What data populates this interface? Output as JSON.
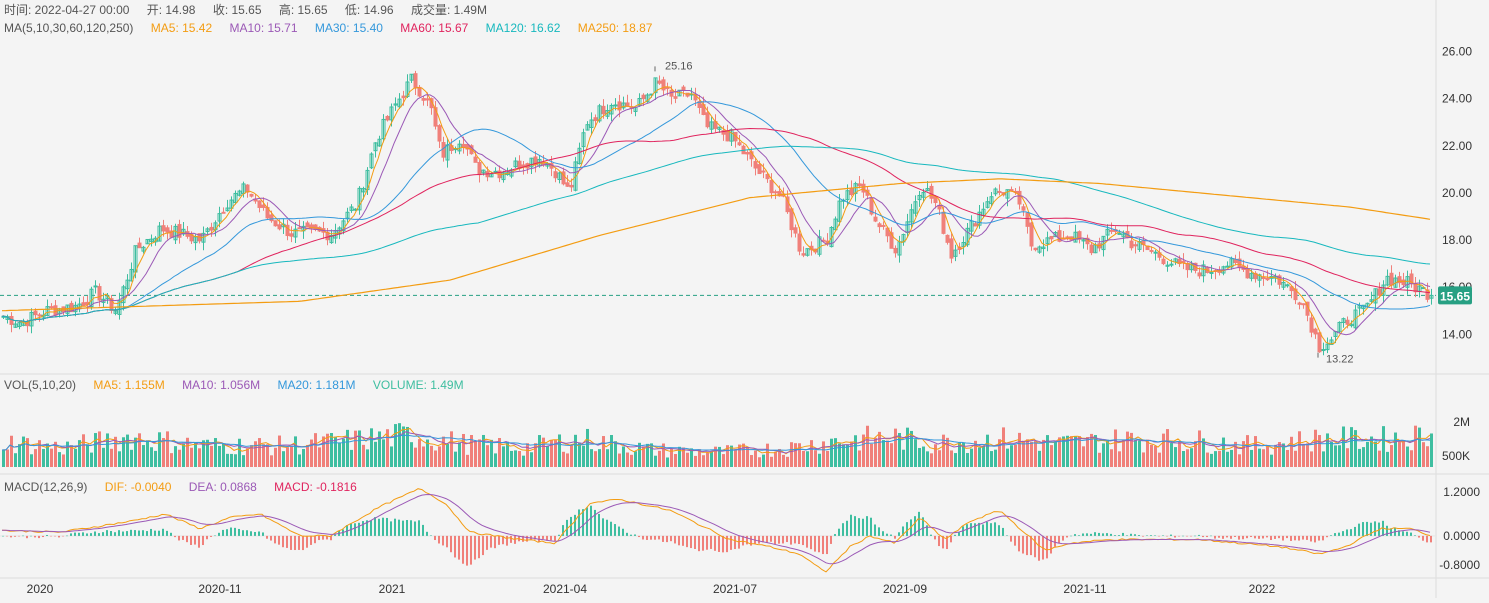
{
  "info_bar": {
    "time_label": "时间: 2022-04-27 00:00",
    "open_label": "开: 14.98",
    "close_label": "收: 15.65",
    "high_label": "高: 15.65",
    "low_label": "低: 14.96",
    "volume_label": "成交量: 1.49M"
  },
  "ma_legend": {
    "title": "MA(5,10,30,60,120,250)",
    "items": [
      {
        "label": "MA5: 15.42",
        "color": "#f39c12"
      },
      {
        "label": "MA10: 15.71",
        "color": "#9b59b6"
      },
      {
        "label": "MA30: 15.40",
        "color": "#3498db"
      },
      {
        "label": "MA60: 15.67",
        "color": "#e0245e"
      },
      {
        "label": "MA120: 16.62",
        "color": "#17b8be"
      },
      {
        "label": "MA250: 18.87",
        "color": "#f39c12"
      }
    ]
  },
  "vol_legend": {
    "title": "VOL(5,10,20)",
    "items": [
      {
        "label": "MA5: 1.155M",
        "color": "#f39c12"
      },
      {
        "label": "MA10: 1.056M",
        "color": "#9b59b6"
      },
      {
        "label": "MA20: 1.181M",
        "color": "#3498db"
      },
      {
        "label": "VOLUME: 1.49M",
        "color": "#3ebea0"
      }
    ]
  },
  "macd_legend": {
    "title": "MACD(12,26,9)",
    "items": [
      {
        "label": "DIF: -0.0040",
        "color": "#f39c12"
      },
      {
        "label": "DEA: 0.0868",
        "color": "#9b59b6"
      },
      {
        "label": "MACD: -0.1816",
        "color": "#e0245e"
      }
    ]
  },
  "colors": {
    "up": "#3ebea0",
    "down": "#f0807a",
    "last_price_badge": "#27a083",
    "grid": "#e4e4e4",
    "text": "#555555"
  },
  "chart_data": {
    "type": "candlestick",
    "last_price": 15.65,
    "last_price_label": "15.65",
    "price_axis": {
      "ylim": [
        12.4,
        27.0
      ],
      "ticks": [
        "26.00",
        "24.00",
        "22.00",
        "20.00",
        "18.00",
        "16.00",
        "14.00"
      ]
    },
    "volume_axis": {
      "ylim": [
        0,
        3200000
      ],
      "ticks": [
        "2M",
        "500K"
      ]
    },
    "macd_axis": {
      "ylim": [
        -1.1,
        1.45
      ],
      "ticks": [
        "1.2000",
        "0.0000",
        "-0.8000"
      ]
    },
    "x_ticks": [
      "2020",
      "2020-11",
      "2021",
      "2021-04",
      "2021-07",
      "2021-09",
      "2021-11",
      "2022"
    ],
    "annotations": {
      "high_label": "25.16",
      "low_label": "13.22",
      "high": 25.16,
      "low": 13.22
    },
    "price_key_points": [
      [
        0,
        14.8
      ],
      [
        20,
        14.5
      ],
      [
        45,
        15.0
      ],
      [
        75,
        15.2
      ],
      [
        95,
        15.8
      ],
      [
        115,
        15.0
      ],
      [
        135,
        17.6
      ],
      [
        160,
        18.5
      ],
      [
        200,
        18.0
      ],
      [
        225,
        19.6
      ],
      [
        245,
        20.2
      ],
      [
        265,
        19.0
      ],
      [
        290,
        18.3
      ],
      [
        330,
        18.3
      ],
      [
        355,
        19.5
      ],
      [
        375,
        22.3
      ],
      [
        395,
        23.8
      ],
      [
        410,
        24.8
      ],
      [
        420,
        24.3
      ],
      [
        430,
        23.5
      ],
      [
        440,
        21.6
      ],
      [
        460,
        22.4
      ],
      [
        475,
        21.0
      ],
      [
        500,
        20.9
      ],
      [
        520,
        21.3
      ],
      [
        540,
        21.5
      ],
      [
        555,
        20.9
      ],
      [
        568,
        20.0
      ],
      [
        585,
        23.0
      ],
      [
        610,
        23.9
      ],
      [
        635,
        23.6
      ],
      [
        655,
        24.7
      ],
      [
        670,
        24.0
      ],
      [
        690,
        24.2
      ],
      [
        705,
        22.8
      ],
      [
        730,
        22.4
      ],
      [
        755,
        21.0
      ],
      [
        780,
        19.8
      ],
      [
        800,
        17.5
      ],
      [
        825,
        18.0
      ],
      [
        840,
        19.8
      ],
      [
        860,
        20.3
      ],
      [
        875,
        18.8
      ],
      [
        895,
        17.6
      ],
      [
        920,
        20.4
      ],
      [
        935,
        19.5
      ],
      [
        950,
        17.4
      ],
      [
        970,
        18.6
      ],
      [
        990,
        20.0
      ],
      [
        1005,
        20.1
      ],
      [
        1018,
        19.6
      ],
      [
        1030,
        17.8
      ],
      [
        1050,
        18.0
      ],
      [
        1070,
        18.2
      ],
      [
        1090,
        17.6
      ],
      [
        1115,
        18.5
      ],
      [
        1130,
        17.9
      ],
      [
        1160,
        17.3
      ],
      [
        1180,
        16.8
      ],
      [
        1205,
        16.7
      ],
      [
        1225,
        17.0
      ],
      [
        1250,
        16.6
      ],
      [
        1275,
        16.4
      ],
      [
        1300,
        15.5
      ],
      [
        1318,
        13.5
      ],
      [
        1330,
        13.8
      ],
      [
        1345,
        14.6
      ],
      [
        1365,
        15.1
      ],
      [
        1385,
        16.4
      ],
      [
        1405,
        16.2
      ],
      [
        1420,
        15.9
      ],
      [
        1432,
        15.65
      ]
    ],
    "ma250_key_points": [
      [
        0,
        15.0
      ],
      [
        300,
        15.4
      ],
      [
        450,
        16.3
      ],
      [
        600,
        18.2
      ],
      [
        750,
        19.8
      ],
      [
        900,
        20.4
      ],
      [
        1000,
        20.6
      ],
      [
        1100,
        20.4
      ],
      [
        1250,
        19.8
      ],
      [
        1350,
        19.4
      ],
      [
        1432,
        18.87
      ]
    ],
    "macd_dif_key_points": [
      [
        0,
        0.15
      ],
      [
        60,
        0.1
      ],
      [
        130,
        0.4
      ],
      [
        165,
        0.6
      ],
      [
        200,
        0.2
      ],
      [
        230,
        0.5
      ],
      [
        260,
        0.6
      ],
      [
        300,
        0.0
      ],
      [
        330,
        0.0
      ],
      [
        380,
        0.8
      ],
      [
        420,
        1.3
      ],
      [
        445,
        0.9
      ],
      [
        470,
        0.1
      ],
      [
        520,
        -0.1
      ],
      [
        555,
        -0.2
      ],
      [
        590,
        0.9
      ],
      [
        620,
        1.0
      ],
      [
        670,
        0.7
      ],
      [
        700,
        0.3
      ],
      [
        730,
        -0.1
      ],
      [
        770,
        -0.3
      ],
      [
        800,
        -0.5
      ],
      [
        825,
        -1.0
      ],
      [
        850,
        -0.3
      ],
      [
        870,
        0.0
      ],
      [
        895,
        -0.2
      ],
      [
        920,
        0.5
      ],
      [
        945,
        -0.1
      ],
      [
        970,
        0.4
      ],
      [
        1000,
        0.7
      ],
      [
        1020,
        0.2
      ],
      [
        1045,
        -0.4
      ],
      [
        1070,
        -0.2
      ],
      [
        1110,
        -0.1
      ],
      [
        1160,
        -0.1
      ],
      [
        1200,
        -0.1
      ],
      [
        1240,
        -0.2
      ],
      [
        1280,
        -0.3
      ],
      [
        1320,
        -0.5
      ],
      [
        1345,
        -0.3
      ],
      [
        1380,
        0.2
      ],
      [
        1410,
        0.2
      ],
      [
        1432,
        0.0
      ]
    ],
    "vol_key_points": [
      [
        0,
        1.2
      ],
      [
        60,
        0.9
      ],
      [
        130,
        1.4
      ],
      [
        200,
        1.0
      ],
      [
        280,
        1.0
      ],
      [
        340,
        1.2
      ],
      [
        410,
        1.5
      ],
      [
        460,
        1.1
      ],
      [
        520,
        0.9
      ],
      [
        580,
        1.3
      ],
      [
        650,
        0.8
      ],
      [
        720,
        0.7
      ],
      [
        790,
        0.9
      ],
      [
        830,
        1.2
      ],
      [
        890,
        1.4
      ],
      [
        930,
        1.1
      ],
      [
        1000,
        1.3
      ],
      [
        1060,
        1.1
      ],
      [
        1130,
        1.3
      ],
      [
        1200,
        1.2
      ],
      [
        1250,
        1.0
      ],
      [
        1320,
        1.3
      ],
      [
        1380,
        1.3
      ],
      [
        1432,
        1.49
      ]
    ]
  }
}
